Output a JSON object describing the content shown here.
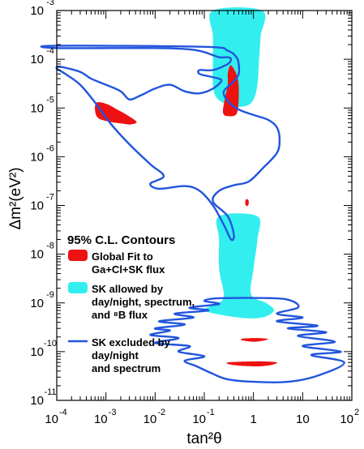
{
  "chart_data": {
    "type": "contour",
    "xlabel": "tan²θ",
    "ylabel": "Δm²(eV²)",
    "x_scale": "log",
    "y_scale": "log",
    "xlim": [
      0.0001,
      100
    ],
    "ylim": [
      1e-11,
      0.001
    ],
    "x_ticks": [
      {
        "value": 0.0001,
        "base": "10",
        "exp": "-4"
      },
      {
        "value": 0.001,
        "base": "10",
        "exp": "-3"
      },
      {
        "value": 0.01,
        "base": "10",
        "exp": "-2"
      },
      {
        "value": 0.1,
        "base": "10",
        "exp": "-1"
      },
      {
        "value": 1,
        "base": "1",
        "exp": ""
      },
      {
        "value": 10,
        "base": "10",
        "exp": ""
      },
      {
        "value": 100,
        "base": "10",
        "exp": "2"
      }
    ],
    "y_ticks": [
      {
        "value": 0.001,
        "base": "10",
        "exp": "-3"
      },
      {
        "value": 0.0001,
        "base": "10",
        "exp": "-4"
      },
      {
        "value": 1e-05,
        "base": "10",
        "exp": "-5"
      },
      {
        "value": 1e-06,
        "base": "10",
        "exp": "-6"
      },
      {
        "value": 1e-07,
        "base": "10",
        "exp": "-7"
      },
      {
        "value": 1e-08,
        "base": "10",
        "exp": "-8"
      },
      {
        "value": 1e-09,
        "base": "10",
        "exp": "-9"
      },
      {
        "value": 1e-10,
        "base": "10",
        "exp": "-10"
      },
      {
        "value": 1e-11,
        "base": "10",
        "exp": "-11"
      }
    ],
    "legend": {
      "title": "95% C.L. Contours",
      "placement": "lower-left",
      "entries": [
        {
          "lines": [
            "Global Fit to",
            "Ga+Cl+SK flux"
          ],
          "style": "filled",
          "color": "#ee1111"
        },
        {
          "lines": [
            "SK allowed by",
            "day/night, spectrum,",
            "and ⁸B flux"
          ],
          "style": "filled",
          "color": "#33eeee"
        },
        {
          "lines": [
            "SK excluded by",
            "day/night",
            "and spectrum"
          ],
          "style": "line",
          "color": "#2255dd"
        }
      ]
    },
    "series": [
      {
        "name": "SK allowed by day/night, spectrum, and ⁸B flux",
        "style": "filled",
        "color": "#33eeee",
        "regions": [
          [
            [
              0.15,
              0.001
            ],
            [
              1.5,
              0.001
            ],
            [
              1.4,
              0.0003
            ],
            [
              1.3,
              0.0001
            ],
            [
              1.2,
              3e-05
            ],
            [
              1.0,
              1.5e-05
            ],
            [
              0.7,
              1.1e-05
            ],
            [
              0.35,
              1.1e-05
            ],
            [
              0.18,
              1.6e-05
            ],
            [
              0.15,
              3e-05
            ],
            [
              0.15,
              0.0001
            ],
            [
              0.15,
              0.0003
            ]
          ],
          [
            [
              0.2,
              6e-08
            ],
            [
              1.2,
              6e-08
            ],
            [
              1.2,
              2e-08
            ],
            [
              1.0,
              5e-09
            ],
            [
              0.9,
              1.5e-09
            ],
            [
              1.8,
              1e-09
            ],
            [
              2.6,
              7e-10
            ],
            [
              1.5,
              5e-10
            ],
            [
              0.5,
              5e-10
            ],
            [
              0.1,
              7e-10
            ],
            [
              0.2,
              1e-09
            ],
            [
              0.25,
              1.5e-09
            ],
            [
              0.2,
              5e-09
            ],
            [
              0.2,
              2e-08
            ]
          ]
        ]
      },
      {
        "name": "Global Fit to Ga+Cl+SK flux",
        "style": "filled",
        "color": "#ee1111",
        "regions": [
          [
            [
              0.00065,
              1.3e-05
            ],
            [
              0.00105,
              1.2e-05
            ],
            [
              0.0018,
              9e-06
            ],
            [
              0.0028,
              7e-06
            ],
            [
              0.0042,
              5.2e-06
            ],
            [
              0.0032,
              4.6e-06
            ],
            [
              0.0021,
              4.8e-06
            ],
            [
              0.0012,
              5.2e-06
            ],
            [
              0.0007,
              6.2e-06
            ],
            [
              0.0006,
              9e-06
            ]
          ],
          [
            [
              0.35,
              7.5e-05
            ],
            [
              0.48,
              4e-05
            ],
            [
              0.5,
              1.5e-05
            ],
            [
              0.45,
              7.5e-06
            ],
            [
              0.3,
              6.8e-06
            ],
            [
              0.24,
              8e-06
            ],
            [
              0.26,
              1.5e-05
            ],
            [
              0.3,
              3e-05
            ],
            [
              0.3,
              5e-05
            ]
          ],
          [
            [
              0.72,
              1.35e-07
            ],
            [
              0.8,
              1.25e-07
            ],
            [
              0.78,
              1e-07
            ],
            [
              0.7,
              1e-07
            ],
            [
              0.68,
              1.2e-07
            ]
          ],
          [
            [
              0.6,
              1.85e-10
            ],
            [
              1.2,
              1.9e-10
            ],
            [
              2.0,
              1.8e-10
            ],
            [
              1.1,
              1.6e-10
            ],
            [
              0.6,
              1.7e-10
            ]
          ],
          [
            [
              0.3,
              6e-11
            ],
            [
              1.2,
              6.3e-11
            ],
            [
              3.0,
              6e-11
            ],
            [
              2.0,
              5.2e-11
            ],
            [
              1.0,
              5e-11
            ],
            [
              0.4,
              5.3e-11
            ]
          ]
        ]
      },
      {
        "name": "SK excluded by day/night and spectrum",
        "style": "line",
        "color": "#2255dd",
        "regions": [
          [
            [
              0.0001,
              0.00017
            ],
            [
              0.01,
              0.00017
            ],
            [
              0.05,
              0.00016
            ],
            [
              0.1,
              0.00014
            ],
            [
              0.2,
              0.00011
            ],
            [
              0.3,
              0.00011
            ],
            [
              0.35,
              0.0001
            ],
            [
              0.3,
              8e-05
            ],
            [
              0.15,
              6e-05
            ],
            [
              0.08,
              6e-05
            ],
            [
              0.08,
              5e-05
            ],
            [
              0.12,
              4.5e-05
            ],
            [
              0.2,
              4e-05
            ],
            [
              0.22,
              3.5e-05
            ],
            [
              0.15,
              2.5e-05
            ],
            [
              0.08,
              2e-05
            ],
            [
              0.04,
              2.2e-05
            ],
            [
              0.02,
              3e-05
            ],
            [
              0.01,
              2.5e-05
            ],
            [
              0.005,
              1.8e-05
            ],
            [
              0.003,
              1.5e-05
            ],
            [
              0.002,
              2.2e-05
            ],
            [
              0.001,
              3e-05
            ],
            [
              0.0005,
              4e-05
            ],
            [
              0.0003,
              5.5e-05
            ],
            [
              0.00012,
              7e-05
            ],
            [
              0.0001,
              6.5e-05
            ],
            [
              0.00015,
              5e-05
            ],
            [
              0.0003,
              3e-05
            ],
            [
              0.0006,
              1.3e-05
            ],
            [
              0.0012,
              5e-06
            ],
            [
              0.003,
              1.8e-06
            ],
            [
              0.008,
              7e-07
            ],
            [
              0.015,
              4e-07
            ],
            [
              0.008,
              2.8e-07
            ],
            [
              0.012,
              2.2e-07
            ],
            [
              0.04,
              2.5e-07
            ],
            [
              0.08,
              2e-07
            ],
            [
              0.15,
              1e-07
            ],
            [
              0.25,
              4e-08
            ],
            [
              0.35,
              2e-08
            ],
            [
              0.4,
              2.5e-08
            ],
            [
              0.3,
              6e-08
            ],
            [
              0.15,
              1.2e-07
            ],
            [
              0.2,
              2e-07
            ],
            [
              0.4,
              2.6e-07
            ],
            [
              0.8,
              3.1e-07
            ],
            [
              1.6,
              6e-07
            ],
            [
              3,
              1.2e-06
            ],
            [
              3.4,
              2.2e-06
            ],
            [
              3,
              4e-06
            ],
            [
              2,
              5.7e-06
            ],
            [
              1,
              7.2e-06
            ],
            [
              0.5,
              9.3e-06
            ],
            [
              0.3,
              1.4e-05
            ],
            [
              0.25,
              2.2e-05
            ],
            [
              0.4,
              3.5e-05
            ],
            [
              0.5,
              5e-05
            ],
            [
              0.5,
              8e-05
            ],
            [
              0.45,
              0.00011
            ],
            [
              0.3,
              0.00015
            ],
            [
              0.1,
              0.00018
            ],
            [
              0.0001,
              0.00019
            ]
          ],
          [
            [
              0.2,
              1.25e-09
            ],
            [
              2.5,
              1.25e-09
            ],
            [
              6,
              1.1e-09
            ],
            [
              8,
              8e-10
            ],
            [
              3,
              6e-10
            ],
            [
              10,
              5e-10
            ],
            [
              3,
              4.2e-10
            ],
            [
              20,
              3.4e-10
            ],
            [
              5,
              3e-10
            ],
            [
              30,
              2.5e-10
            ],
            [
              8,
              2.1e-10
            ],
            [
              45,
              1.6e-10
            ],
            [
              10,
              1.3e-10
            ],
            [
              60,
              1e-10
            ],
            [
              15,
              8.5e-11
            ],
            [
              70,
              6e-11
            ],
            [
              20,
              3.2e-11
            ],
            [
              5,
              2.4e-11
            ],
            [
              1,
              2.4e-11
            ],
            [
              0.3,
              2.7e-11
            ],
            [
              0.15,
              3.5e-11
            ],
            [
              0.07,
              5e-11
            ],
            [
              0.04,
              6.5e-11
            ],
            [
              0.1,
              8e-11
            ],
            [
              0.03,
              1e-10
            ],
            [
              0.05,
              1.3e-10
            ],
            [
              0.01,
              1.5e-10
            ],
            [
              0.03,
              1.9e-10
            ],
            [
              0.008,
              2.2e-10
            ],
            [
              0.02,
              2.7e-10
            ],
            [
              0.01,
              3e-10
            ],
            [
              0.04,
              3.6e-10
            ],
            [
              0.012,
              4.2e-10
            ],
            [
              0.06,
              5e-10
            ],
            [
              0.025,
              6e-10
            ],
            [
              0.12,
              7e-10
            ],
            [
              0.05,
              8e-10
            ],
            [
              0.2,
              9.5e-10
            ],
            [
              0.1,
              1.1e-09
            ]
          ]
        ]
      }
    ]
  }
}
